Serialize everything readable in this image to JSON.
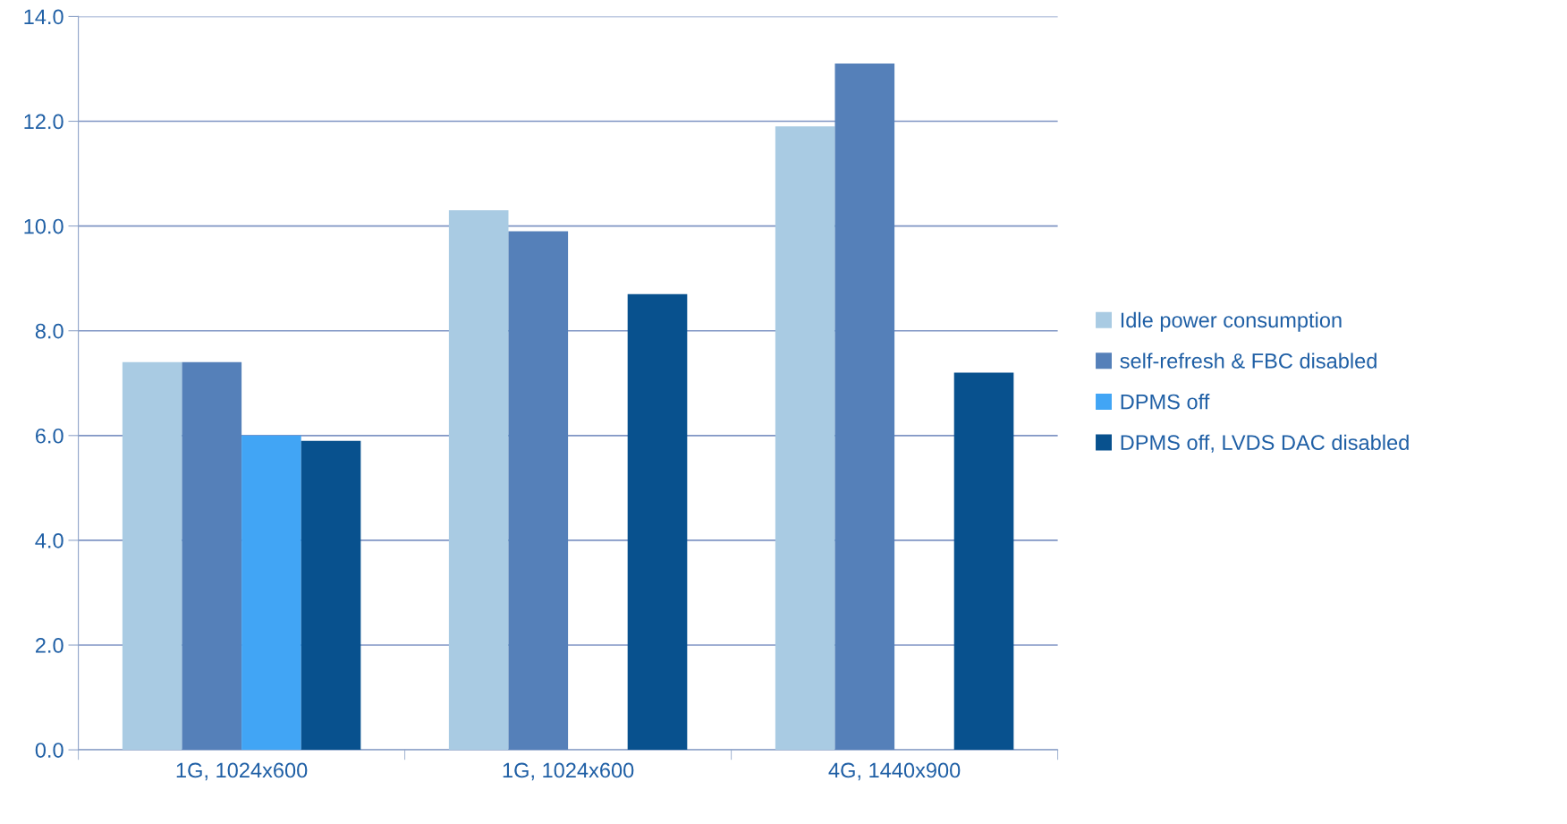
{
  "chart_data": {
    "type": "bar",
    "categories": [
      "1G, 1024x600",
      "1G, 1024x600",
      "4G, 1440x900"
    ],
    "series": [
      {
        "name": "Idle power consumption",
        "color": "#a9cbe3",
        "values": [
          7.4,
          10.3,
          11.9
        ]
      },
      {
        "name": "self-refresh & FBC disabled",
        "color": "#5580b9",
        "values": [
          7.4,
          9.9,
          13.1
        ]
      },
      {
        "name": "DPMS off",
        "color": "#41a5f5",
        "values": [
          6.0,
          null,
          null
        ]
      },
      {
        "name": "DPMS off, LVDS DAC disabled",
        "color": "#08518e",
        "values": [
          5.9,
          8.7,
          7.2
        ]
      }
    ],
    "ylim": [
      0,
      14
    ],
    "yticks": [
      {
        "value": 0,
        "label": "0.0"
      },
      {
        "value": 2,
        "label": "2.0"
      },
      {
        "value": 4,
        "label": "4.0"
      },
      {
        "value": 6,
        "label": "6.0"
      },
      {
        "value": 8,
        "label": "8.0"
      },
      {
        "value": 10,
        "label": "10.0"
      },
      {
        "value": 12,
        "label": "12.0"
      },
      {
        "value": 14,
        "label": "14.0"
      }
    ],
    "grid": "y",
    "legend": "right"
  }
}
